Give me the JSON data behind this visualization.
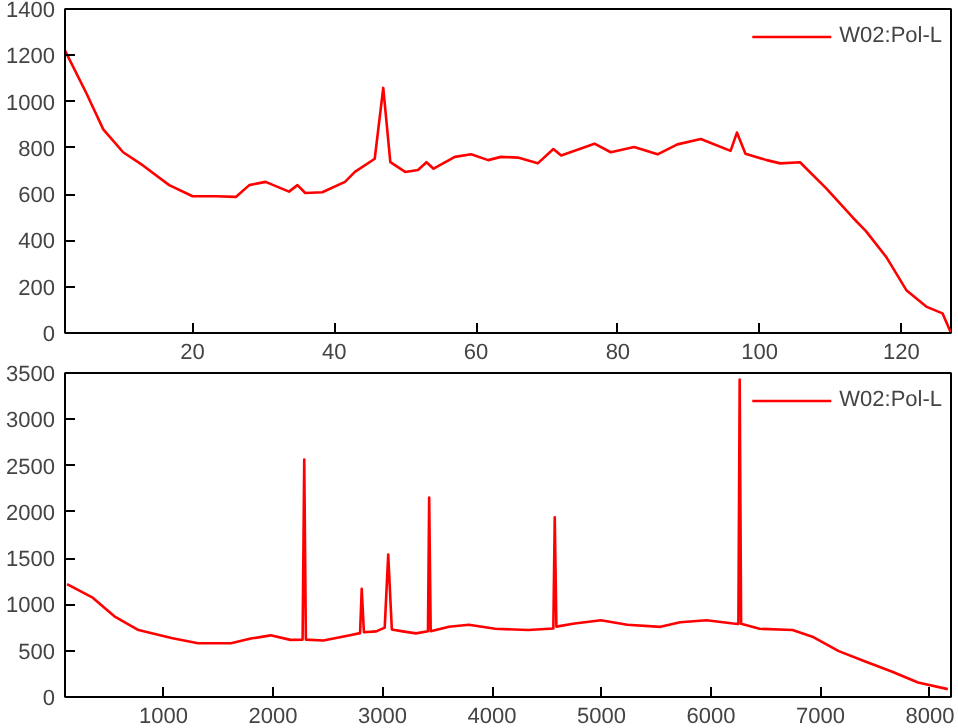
{
  "chart_data": [
    {
      "type": "line",
      "xlim": [
        2,
        127
      ],
      "xticks": [
        20,
        40,
        60,
        80,
        100,
        120
      ],
      "ylim": [
        0,
        1400
      ],
      "yticks": [
        0,
        200,
        400,
        600,
        800,
        1000,
        1200,
        1400
      ],
      "grid": false,
      "legend": "top right",
      "series": [
        {
          "name": "W02:Pol-L",
          "color": "#ff0000",
          "x": [
            2,
            5,
            7.4,
            10.2,
            13,
            16.7,
            20,
            23.3,
            26.1,
            28,
            30.3,
            33.6,
            34.8,
            35.9,
            38.3,
            41.5,
            42.9,
            45.7,
            46.9,
            47.9,
            50,
            51.8,
            53,
            54,
            57,
            59.3,
            61.7,
            63.5,
            65.9,
            68.7,
            70.9,
            72,
            76.7,
            79,
            82.3,
            85.6,
            88.4,
            91.7,
            95.9,
            96.8,
            98,
            101,
            102.9,
            105.7,
            109.4,
            113.2,
            115,
            117.9,
            120.7,
            123.5,
            125.8,
            127
          ],
          "values": [
            1220,
            1037,
            880,
            781,
            724,
            639,
            591,
            591,
            588,
            639,
            653,
            611,
            639,
            605,
            608,
            653,
            696,
            753,
            1059,
            738,
            696,
            704,
            738,
            710,
            761,
            772,
            747,
            761,
            758,
            733,
            795,
            767,
            818,
            781,
            804,
            772,
            815,
            838,
            787,
            866,
            775,
            747,
            733,
            738,
            625,
            497,
            440,
            327,
            185,
            114,
            85,
            0
          ]
        }
      ]
    },
    {
      "type": "line",
      "xlim": [
        100,
        8192
      ],
      "xticks": [
        1000,
        2000,
        3000,
        4000,
        5000,
        6000,
        7000,
        8000
      ],
      "ylim": [
        0,
        3500
      ],
      "yticks": [
        0,
        500,
        1000,
        1500,
        2000,
        2500,
        3000,
        3500
      ],
      "grid": false,
      "legend": "top right",
      "series": [
        {
          "name": "W02:Pol-L",
          "color": "#ff0000",
          "x": [
            119,
            348,
            559,
            771,
            1072,
            1314,
            1616,
            1797,
            1978,
            2159,
            2270,
            2285,
            2300,
            2460,
            2702,
            2795,
            2810,
            2830,
            2943,
            3020,
            3052,
            3085,
            3185,
            3305,
            3415,
            3426,
            3440,
            3607,
            3788,
            4029,
            4331,
            4560,
            4573,
            4588,
            4754,
            4995,
            5236,
            5538,
            5719,
            5960,
            6202,
            6250,
            6262,
            6275,
            6443,
            6745,
            6926,
            7167,
            7409,
            7650,
            7891,
            8163
          ],
          "values": [
            1219,
            1077,
            865,
            723,
            638,
            581,
            581,
            631,
            666,
            617,
            620,
            2566,
            620,
            610,
            666,
            690,
            1169,
            700,
            709,
            750,
            1538,
            730,
            709,
            687,
            710,
            2154,
            710,
            758,
            780,
            737,
            723,
            740,
            1942,
            760,
            794,
            829,
            780,
            758,
            808,
            829,
            794,
            790,
            3430,
            790,
            737,
            723,
            652,
            496,
            383,
            276,
            156,
            85
          ]
        }
      ]
    }
  ]
}
